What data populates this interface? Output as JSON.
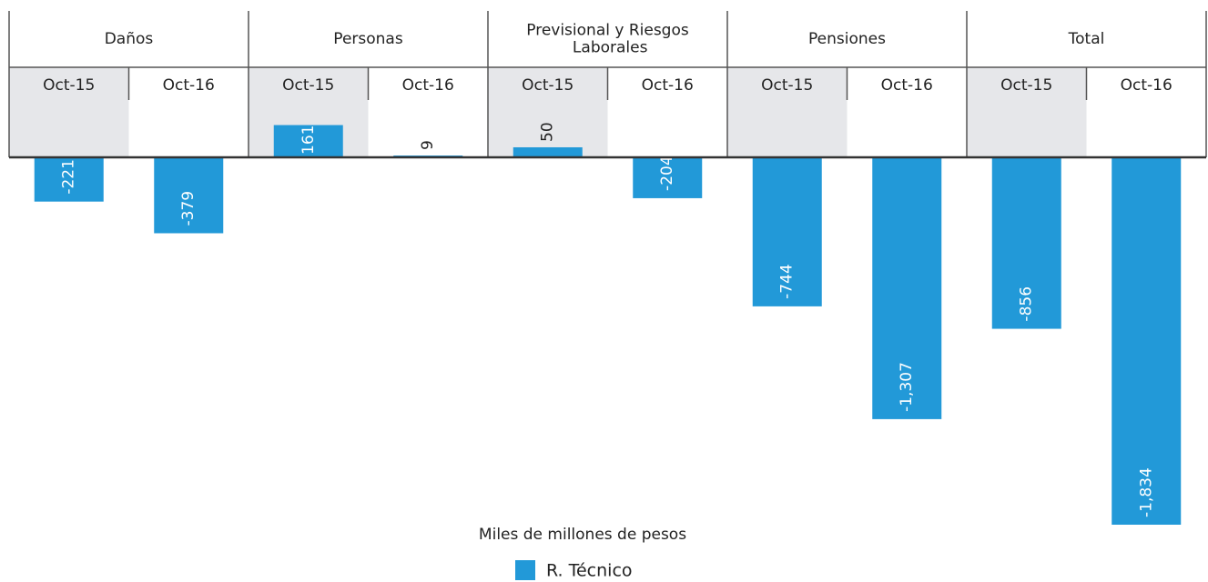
{
  "chart_data": {
    "type": "bar",
    "groups": [
      {
        "name": "Daños",
        "categories": [
          "Oct-15",
          "Oct-16"
        ]
      },
      {
        "name": "Personas",
        "categories": [
          "Oct-15",
          "Oct-16"
        ]
      },
      {
        "name": "Previsional y Riesgos Laborales",
        "categories": [
          "Oct-15",
          "Oct-16"
        ]
      },
      {
        "name": "Pensiones",
        "categories": [
          "Oct-15",
          "Oct-16"
        ]
      },
      {
        "name": "Total",
        "categories": [
          "Oct-15",
          "Oct-16"
        ]
      }
    ],
    "series": [
      {
        "name": "R. Técnico",
        "color": "#2299d8",
        "values": [
          -221,
          -379,
          161,
          9,
          50,
          -204,
          -744,
          -1307,
          -856,
          -1834
        ],
        "value_labels": [
          "-221",
          "-379",
          "161",
          "9",
          "50",
          "-204",
          "-744",
          "-1,307",
          "-856",
          "-1,834"
        ]
      }
    ],
    "ylabel": "Miles de millones de pesos"
  }
}
